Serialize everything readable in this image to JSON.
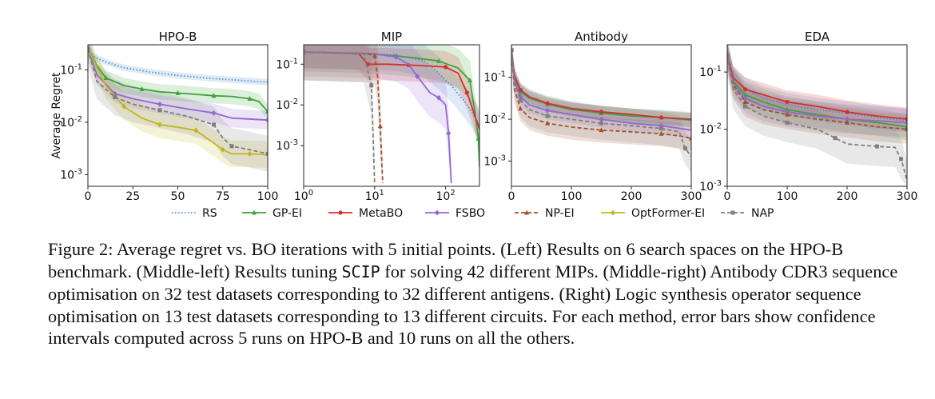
{
  "chart_data": {
    "type": "line",
    "figure": "Figure 2",
    "ylabel": "Average Regret",
    "legend": {
      "placement": "bottom",
      "entries": [
        {
          "name": "RS",
          "color": "#4a8fd4",
          "style": "dotted",
          "marker": "none"
        },
        {
          "name": "GP-EI",
          "color": "#3aa53a",
          "style": "solid",
          "marker": "triangle"
        },
        {
          "name": "MetaBO",
          "color": "#d62f2f",
          "style": "solid",
          "marker": "circle"
        },
        {
          "name": "FSBO",
          "color": "#9467d4",
          "style": "solid",
          "marker": "diamond"
        },
        {
          "name": "NP-EI",
          "color": "#a0522d",
          "style": "dashed",
          "marker": "triangle"
        },
        {
          "name": "OptFormer-EI",
          "color": "#c3b521",
          "style": "solid",
          "marker": "diamond"
        },
        {
          "name": "NAP",
          "color": "#7f7f7f",
          "style": "dashed",
          "marker": "square"
        }
      ]
    },
    "panels": [
      {
        "title": "HPO-B",
        "xscale": "linear",
        "yscale": "log",
        "xlim": [
          0,
          100
        ],
        "ylim": [
          0.0006,
          0.3
        ],
        "xticks": [
          0,
          25,
          50,
          75,
          100
        ],
        "xtick_labels": [
          "0",
          "25",
          "50",
          "75",
          "100"
        ],
        "yticks": [
          0.1,
          0.01,
          0.001
        ],
        "ytick_labels": [
          "10^-1",
          "10^-2",
          "10^-3"
        ],
        "series": [
          {
            "name": "RS",
            "x": [
              0,
              3,
              10,
              20,
              35,
              50,
              70,
              100
            ],
            "y": [
              0.25,
              0.18,
              0.14,
              0.11,
              0.09,
              0.078,
              0.068,
              0.058
            ],
            "band": 1.15
          },
          {
            "name": "GP-EI",
            "x": [
              0,
              5,
              10,
              20,
              30,
              40,
              50,
              60,
              70,
              80,
              90,
              95,
              100
            ],
            "y": [
              0.25,
              0.12,
              0.07,
              0.05,
              0.043,
              0.038,
              0.036,
              0.034,
              0.032,
              0.031,
              0.028,
              0.025,
              0.016
            ],
            "band": 1.4
          },
          {
            "name": "FSBO",
            "x": [
              0,
              5,
              15,
              25,
              40,
              55,
              70,
              80,
              100
            ],
            "y": [
              0.25,
              0.08,
              0.035,
              0.028,
              0.022,
              0.018,
              0.015,
              0.012,
              0.011
            ],
            "band": 1.5
          },
          {
            "name": "OptFormer-EI",
            "x": [
              0,
              10,
              20,
              30,
              40,
              50,
              60,
              70,
              75,
              80,
              90,
              100
            ],
            "y": [
              0.25,
              0.05,
              0.02,
              0.012,
              0.009,
              0.008,
              0.007,
              0.004,
              0.003,
              0.0025,
              0.0025,
              0.0024
            ],
            "band": 1.8
          },
          {
            "name": "NAP",
            "x": [
              0,
              5,
              15,
              25,
              40,
              55,
              70,
              75,
              80,
              90,
              100
            ],
            "y": [
              0.25,
              0.06,
              0.03,
              0.022,
              0.017,
              0.013,
              0.009,
              0.005,
              0.0035,
              0.003,
              0.0025
            ],
            "band": 2.2
          }
        ]
      },
      {
        "title": "MIP",
        "xscale": "log",
        "yscale": "log",
        "xlim": [
          1,
          300
        ],
        "ylim": [
          0.0001,
          0.3
        ],
        "xticks": [
          1,
          10,
          100
        ],
        "xtick_labels": [
          "10^0",
          "10^1",
          "10^2"
        ],
        "yticks": [
          0.1,
          0.01,
          0.001
        ],
        "ytick_labels": [
          "10^-1",
          "10^-2",
          "10^-3"
        ],
        "series": [
          {
            "name": "RS",
            "x": [
              1,
              5,
              20,
              50,
              80,
              120,
              200,
              280,
              300
            ],
            "y": [
              0.2,
              0.19,
              0.17,
              0.12,
              0.06,
              0.03,
              0.01,
              0.004,
              0.003
            ],
            "band": 2.5
          },
          {
            "name": "GP-EI",
            "x": [
              1,
              8,
              20,
              40,
              80,
              150,
              220,
              260,
              290,
              300
            ],
            "y": [
              0.2,
              0.18,
              0.16,
              0.14,
              0.12,
              0.08,
              0.04,
              0.006,
              0.0015,
              0.0003
            ],
            "band": 3.0
          },
          {
            "name": "MetaBO",
            "x": [
              1,
              6,
              8,
              15,
              30,
              60,
              100,
              150,
              200,
              300
            ],
            "y": [
              0.2,
              0.18,
              0.1,
              0.1,
              0.095,
              0.09,
              0.085,
              0.06,
              0.02,
              0.0025
            ],
            "band": 2.5
          },
          {
            "name": "FSBO",
            "x": [
              1,
              10,
              20,
              30,
              40,
              60,
              80,
              100,
              110,
              120
            ],
            "y": [
              0.2,
              0.18,
              0.15,
              0.1,
              0.05,
              0.02,
              0.015,
              0.01,
              0.002,
              0.00012
            ],
            "band": 4.0
          },
          {
            "name": "NP-EI",
            "x": [
              1,
              8,
              10,
              11,
              12,
              13
            ],
            "y": [
              0.2,
              0.18,
              0.16,
              0.05,
              0.003,
              0.00012
            ],
            "band": 5.0
          },
          {
            "name": "NAP",
            "x": [
              1,
              7,
              9,
              10
            ],
            "y": [
              0.2,
              0.18,
              0.03,
              0.00012
            ],
            "band": 5.0
          }
        ]
      },
      {
        "title": "Antibody",
        "xscale": "linear",
        "yscale": "log",
        "xlim": [
          0,
          300
        ],
        "ylim": [
          0.00025,
          0.6
        ],
        "xticks": [
          0,
          100,
          200,
          300
        ],
        "xtick_labels": [
          "0",
          "100",
          "200",
          "300"
        ],
        "yticks": [
          0.1,
          0.01,
          0.001
        ],
        "ytick_labels": [
          "10^-1",
          "10^-2",
          "10^-3"
        ],
        "series": [
          {
            "name": "RS",
            "x": [
              0,
              5,
              15,
              30,
              60,
              100,
              150,
              200,
              250,
              300
            ],
            "y": [
              0.45,
              0.11,
              0.05,
              0.035,
              0.024,
              0.018,
              0.014,
              0.012,
              0.011,
              0.01
            ],
            "band": 1.5
          },
          {
            "name": "GP-EI",
            "x": [
              0,
              5,
              15,
              30,
              60,
              100,
              150,
              200,
              250,
              300
            ],
            "y": [
              0.45,
              0.1,
              0.045,
              0.032,
              0.023,
              0.017,
              0.014,
              0.012,
              0.011,
              0.0095
            ],
            "band": 1.5
          },
          {
            "name": "MetaBO",
            "x": [
              0,
              5,
              15,
              30,
              60,
              100,
              150,
              200,
              250,
              300
            ],
            "y": [
              0.45,
              0.11,
              0.05,
              0.034,
              0.024,
              0.018,
              0.015,
              0.013,
              0.011,
              0.01
            ],
            "band": 1.4
          },
          {
            "name": "FSBO",
            "x": [
              0,
              5,
              15,
              30,
              60,
              100,
              150,
              200,
              250,
              300
            ],
            "y": [
              0.45,
              0.08,
              0.035,
              0.022,
              0.016,
              0.013,
              0.01,
              0.008,
              0.007,
              0.0055
            ],
            "band": 1.6
          },
          {
            "name": "NP-EI",
            "x": [
              0,
              5,
              15,
              30,
              60,
              100,
              150,
              200,
              250,
              280,
              300
            ],
            "y": [
              0.45,
              0.05,
              0.018,
              0.011,
              0.008,
              0.0065,
              0.0055,
              0.005,
              0.0045,
              0.004,
              0.0035
            ],
            "band": 2.0
          },
          {
            "name": "NAP",
            "x": [
              0,
              5,
              15,
              30,
              60,
              100,
              150,
              200,
              250,
              280,
              290,
              300
            ],
            "y": [
              0.45,
              0.07,
              0.028,
              0.017,
              0.012,
              0.01,
              0.008,
              0.007,
              0.006,
              0.005,
              0.002,
              0.0013
            ],
            "band": 2.5
          }
        ]
      },
      {
        "title": "EDA",
        "xscale": "linear",
        "yscale": "log",
        "xlim": [
          0,
          300
        ],
        "ylim": [
          0.001,
          0.3
        ],
        "xticks": [
          0,
          100,
          200,
          300
        ],
        "xtick_labels": [
          "0",
          "100",
          "200",
          "300"
        ],
        "yticks": [
          0.1,
          0.01,
          0.001
        ],
        "ytick_labels": [
          "10^-1",
          "10^-2",
          "10^-3"
        ],
        "series": [
          {
            "name": "RS",
            "x": [
              0,
              10,
              30,
              60,
              100,
              150,
              200,
              250,
              300
            ],
            "y": [
              0.2,
              0.08,
              0.05,
              0.035,
              0.027,
              0.022,
              0.019,
              0.016,
              0.014
            ],
            "band": 1.6
          },
          {
            "name": "GP-EI",
            "x": [
              0,
              10,
              30,
              60,
              100,
              150,
              200,
              250,
              300
            ],
            "y": [
              0.2,
              0.07,
              0.04,
              0.03,
              0.022,
              0.018,
              0.015,
              0.013,
              0.011
            ],
            "band": 1.7
          },
          {
            "name": "MetaBO",
            "x": [
              0,
              10,
              30,
              60,
              100,
              150,
              200,
              250,
              300
            ],
            "y": [
              0.2,
              0.08,
              0.05,
              0.04,
              0.03,
              0.025,
              0.02,
              0.017,
              0.015
            ],
            "band": 1.6
          },
          {
            "name": "FSBO",
            "x": [
              0,
              10,
              30,
              60,
              100,
              150,
              200,
              250,
              300
            ],
            "y": [
              0.2,
              0.065,
              0.035,
              0.025,
              0.02,
              0.017,
              0.015,
              0.014,
              0.013
            ],
            "band": 1.8
          },
          {
            "name": "NP-EI",
            "x": [
              0,
              10,
              30,
              60,
              100,
              150,
              200,
              250,
              300
            ],
            "y": [
              0.2,
              0.06,
              0.03,
              0.022,
              0.018,
              0.015,
              0.013,
              0.011,
              0.01
            ],
            "band": 1.8
          },
          {
            "name": "NAP",
            "x": [
              0,
              10,
              30,
              60,
              100,
              150,
              180,
              200,
              250,
              280,
              290,
              300
            ],
            "y": [
              0.2,
              0.05,
              0.025,
              0.017,
              0.013,
              0.01,
              0.007,
              0.0055,
              0.005,
              0.0048,
              0.003,
              0.0013
            ],
            "band": 2.2
          }
        ]
      }
    ]
  },
  "caption": {
    "part1": "Figure 2: Average regret vs. BO iterations with 5 initial points. (Left) Results on 6 search spaces on the HPO-B benchmark. (Middle-left) Results tuning ",
    "code": "SCIP",
    "part2": " for solving 42 different MIPs. (Middle-right) Antibody CDR3 sequence optimisation on 32 test datasets corresponding to 32 different antigens. (Right) Logic synthesis operator sequence optimisation on 13 test datasets corresponding to 13 different circuits. For each method, error bars show confidence intervals computed across 5 runs on HPO-B and 10 runs on all the others."
  }
}
